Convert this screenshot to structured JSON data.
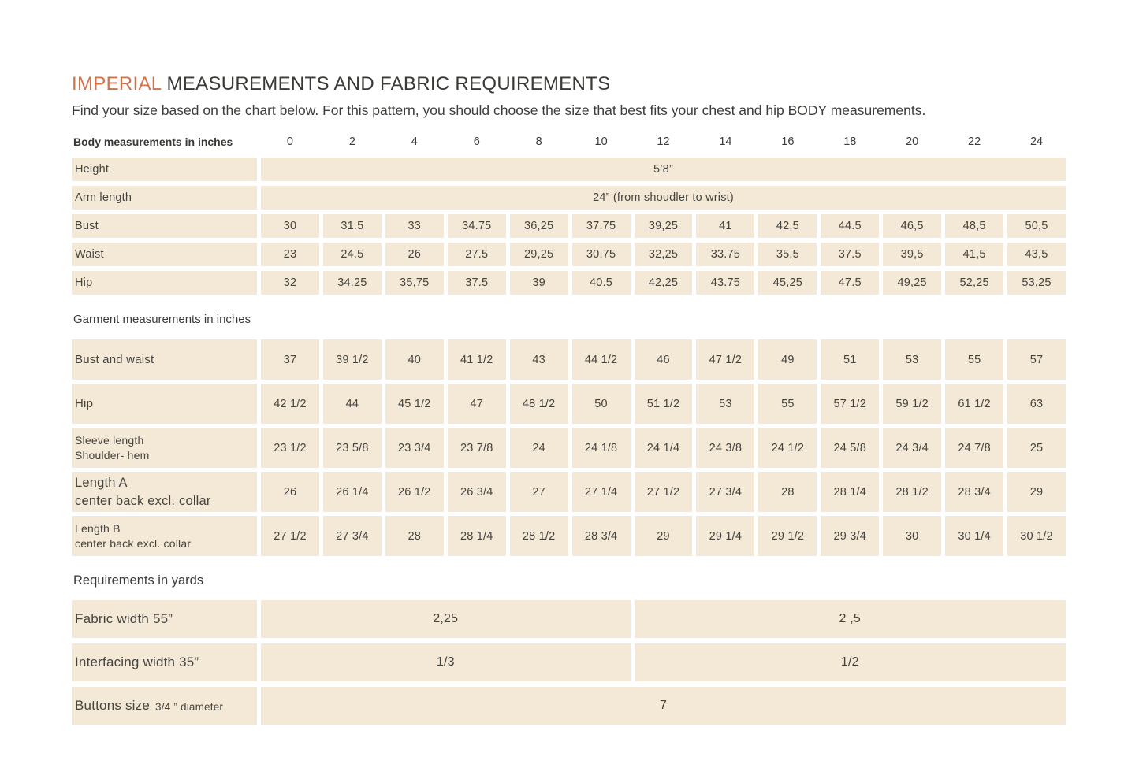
{
  "header": {
    "title_highlight": "IMPERIAL",
    "title_rest": " MEASUREMENTS AND FABRIC REQUIREMENTS",
    "subtitle": "Find your size based on the chart below. For this pattern, you should choose the size that best fits your chest and hip BODY measurements."
  },
  "colors": {
    "accent": "#cd734d",
    "cell_background": "#f3e9d6",
    "text": "#403e3a"
  },
  "size_header": {
    "label": "Body measurements in inches",
    "sizes": [
      "0",
      "2",
      "4",
      "6",
      "8",
      "10",
      "12",
      "14",
      "16",
      "18",
      "20",
      "22",
      "24"
    ]
  },
  "body_rows": [
    {
      "label": "Height",
      "span_value": "5’8”"
    },
    {
      "label": "Arm length",
      "span_value": "24” (from shoudler to wrist)"
    },
    {
      "label": "Bust",
      "values": [
        "30",
        "31.5",
        "33",
        "34.75",
        "36,25",
        "37.75",
        "39,25",
        "41",
        "42,5",
        "44.5",
        "46,5",
        "48,5",
        "50,5"
      ]
    },
    {
      "label": "Waist",
      "values": [
        "23",
        "24.5",
        "26",
        "27.5",
        "29,25",
        "30.75",
        "32,25",
        "33.75",
        "35,5",
        "37.5",
        "39,5",
        "41,5",
        "43,5"
      ]
    },
    {
      "label": "Hip",
      "values": [
        "32",
        "34.25",
        "35,75",
        "37.5",
        "39",
        "40.5",
        "42,25",
        "43.75",
        "45,25",
        "47.5",
        "49,25",
        "52,25",
        "53,25"
      ]
    }
  ],
  "garment": {
    "heading": "Garment measurements in inches",
    "rows": [
      {
        "label": "Bust and waist",
        "values": [
          "37",
          "39 1/2",
          "40",
          "41 1/2",
          "43",
          "44 1/2",
          "46",
          "47 1/2",
          "49",
          "51",
          "53",
          "55",
          "57"
        ]
      },
      {
        "label": "Hip",
        "values": [
          "42 1/2",
          "44",
          "45 1/2",
          "47",
          "48 1/2",
          "50",
          "51 1/2",
          "53",
          "55",
          "57 1/2",
          "59 1/2",
          "61 1/2",
          "63"
        ]
      },
      {
        "label": "Sleeve length",
        "label2": "Shoulder- hem",
        "values": [
          "23 1/2",
          "23 5/8",
          "23 3/4",
          "23 7/8",
          "24",
          "24 1/8",
          "24 1/4",
          "24 3/8",
          "24 1/2",
          "24 5/8",
          "24 3/4",
          "24 7/8",
          "25"
        ]
      },
      {
        "label": "Length A",
        "label2": "center back excl. collar",
        "large_label": true,
        "values": [
          "26",
          "26 1/4",
          "26 1/2",
          "26 3/4",
          "27",
          "27 1/4",
          "27 1/2",
          "27 3/4",
          "28",
          "28 1/4",
          "28 1/2",
          "28 3/4",
          "29"
        ]
      },
      {
        "label": "Length B",
        "label2": "center back excl. collar",
        "values": [
          "27 1/2",
          "27 3/4",
          "28",
          "28 1/4",
          "28 1/2",
          "28 3/4",
          "29",
          "29 1/4",
          "29 1/2",
          "29 3/4",
          "30",
          "30 1/4",
          "30 1/2"
        ]
      }
    ]
  },
  "requirements": {
    "heading": "Requirements in yards",
    "rows": [
      {
        "label": "Fabric width 55”",
        "left": "2,25",
        "right": "2 ,5"
      },
      {
        "label": "Interfacing width 35”",
        "left": "1/3",
        "right": "1/2"
      },
      {
        "label": "Buttons size",
        "label_note": "3/4 ” diameter",
        "value": "7"
      }
    ]
  }
}
